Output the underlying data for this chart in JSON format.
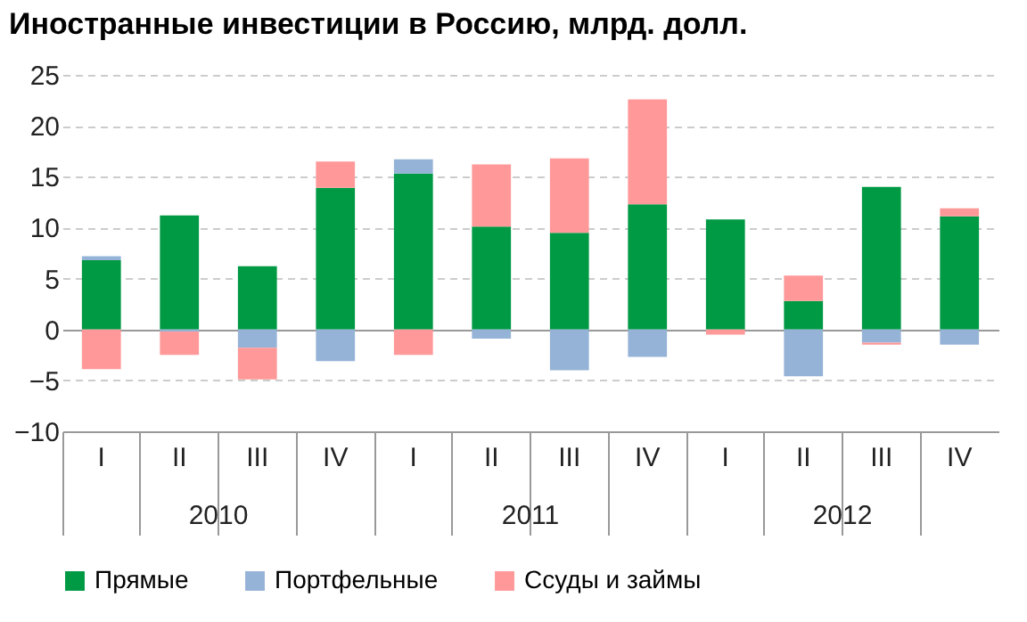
{
  "chart_data": {
    "type": "bar",
    "title": "Иностранные инвестиции в Россию, млрд. долл.",
    "stacked": true,
    "categories": [
      "I",
      "II",
      "III",
      "IV",
      "I",
      "II",
      "III",
      "IV",
      "I",
      "II",
      "III",
      "IV"
    ],
    "annotations": [
      "2010",
      "2011",
      "2012"
    ],
    "series": [
      {
        "name": "Прямые",
        "color": "#009944",
        "values": [
          6.8,
          11.2,
          6.2,
          13.9,
          15.3,
          10.1,
          9.5,
          12.3,
          10.8,
          2.8,
          14.0,
          11.1
        ]
      },
      {
        "name": "Портфельные",
        "color": "#95b3d7",
        "values": [
          0.4,
          -0.2,
          -1.8,
          -3.1,
          1.4,
          -0.9,
          -4.0,
          -2.7,
          0,
          -4.6,
          -1.3,
          -1.5
        ]
      },
      {
        "name": "Ссуды и займы",
        "color": "#ff9999",
        "values": [
          -3.9,
          -2.3,
          -3.1,
          2.6,
          -2.5,
          6.1,
          7.3,
          10.3,
          -0.5,
          2.5,
          -0.2,
          0.8
        ]
      }
    ],
    "ylim": [
      -10,
      25
    ],
    "yticks": [
      -10,
      -5,
      0,
      5,
      10,
      15,
      20,
      25
    ],
    "grid": "y",
    "legend": "bottom"
  }
}
